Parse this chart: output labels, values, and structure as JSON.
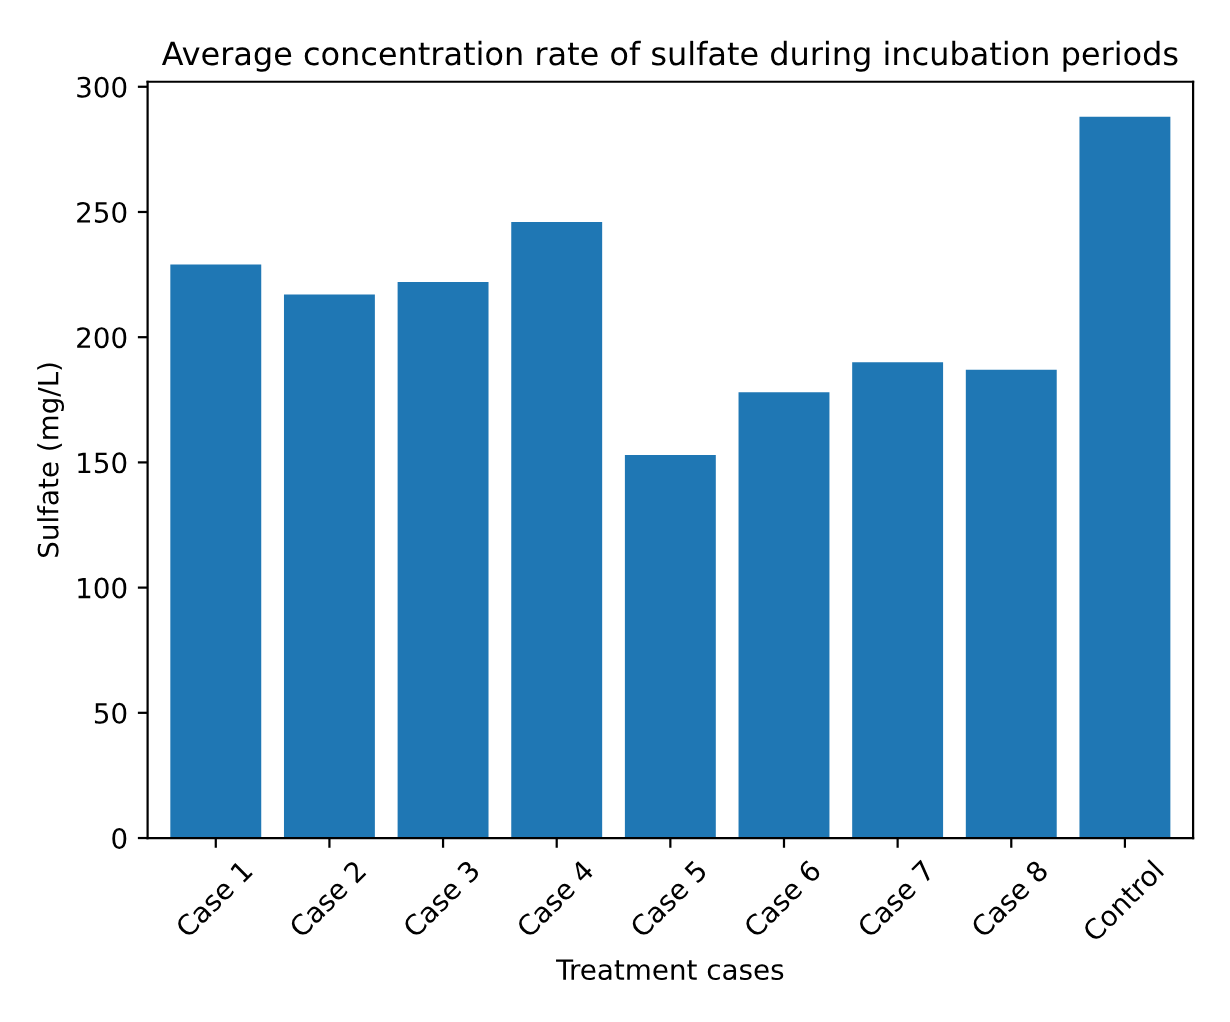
{
  "chart_data": {
    "type": "bar",
    "title": "Average concentration rate of sulfate during incubation periods",
    "xlabel": "Treatment cases",
    "ylabel": "Sulfate (mg/L)",
    "categories": [
      "Case 1",
      "Case 2",
      "Case 3",
      "Case 4",
      "Case 5",
      "Case 6",
      "Case 7",
      "Case 8",
      "Control"
    ],
    "values": [
      229,
      217,
      222,
      246,
      153,
      178,
      190,
      187,
      288
    ],
    "color": "#1f77b4",
    "ylim": [
      0,
      302
    ],
    "yticks": [
      0,
      50,
      100,
      150,
      200,
      250,
      300
    ],
    "grid": false
  }
}
